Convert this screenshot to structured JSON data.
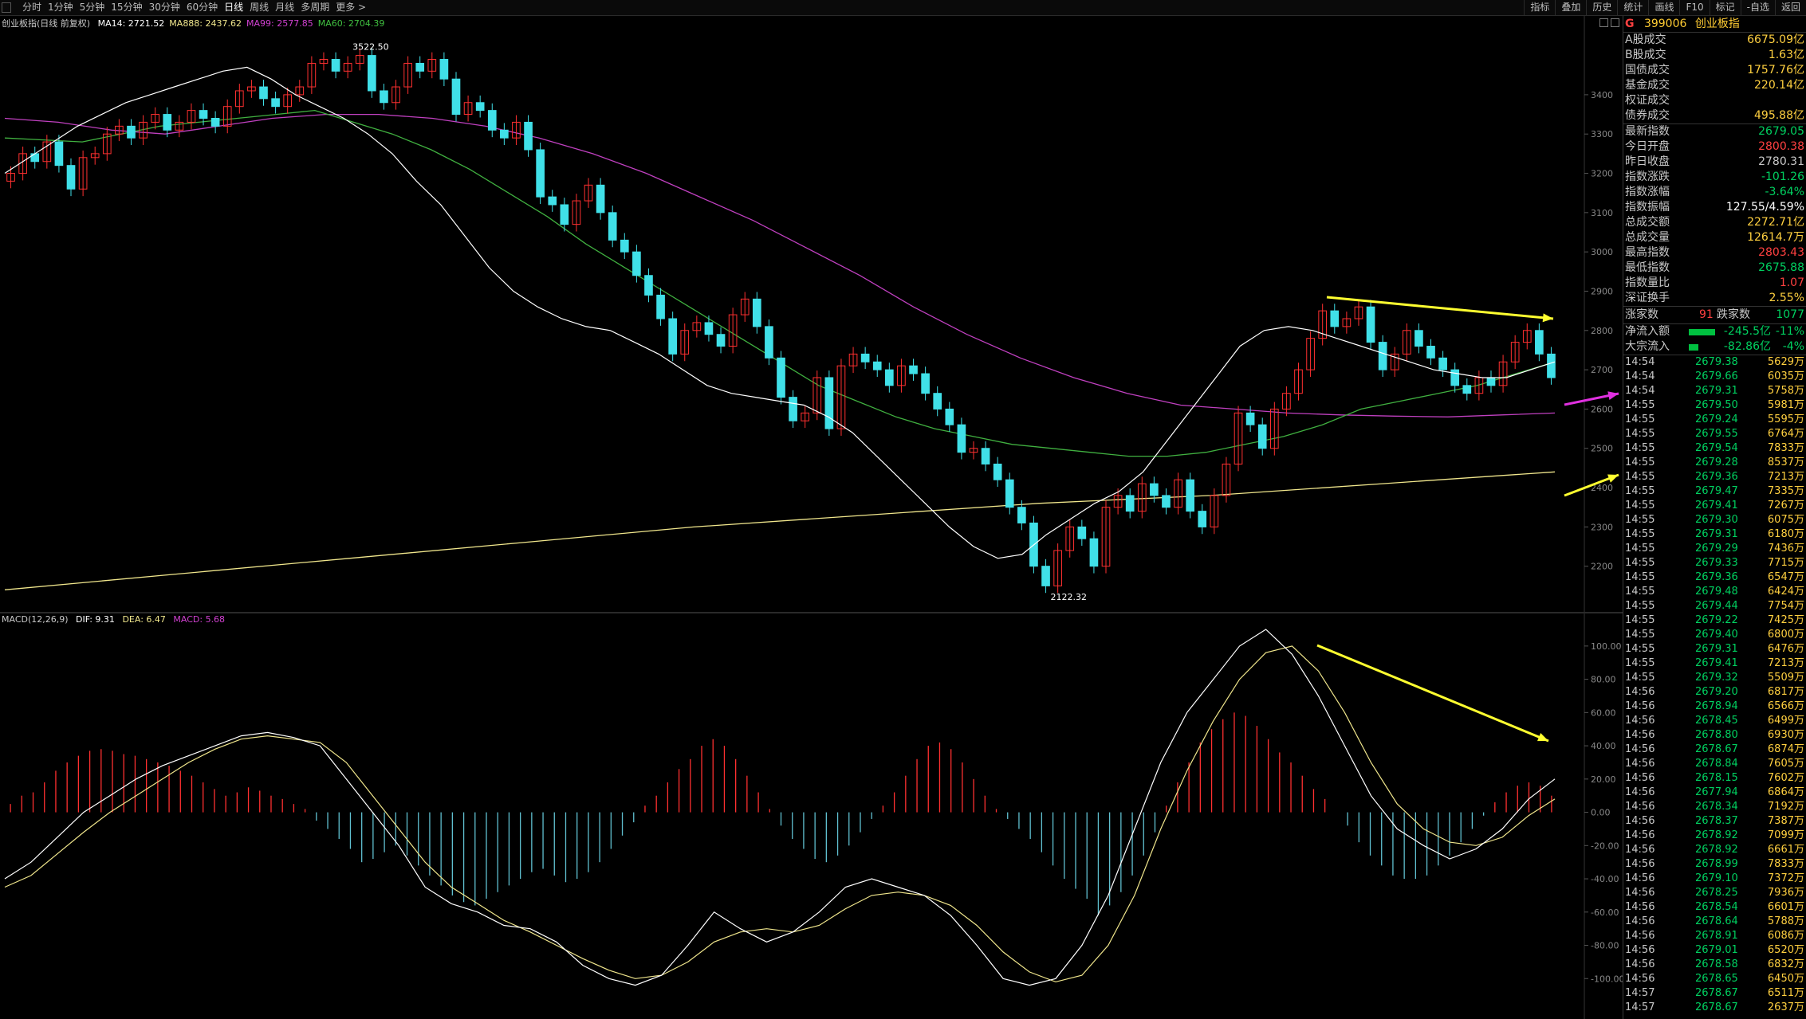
{
  "toolbar": {
    "periods": [
      "分时",
      "1分钟",
      "5分钟",
      "15分钟",
      "30分钟",
      "60分钟",
      "日线",
      "周线",
      "月线",
      "多周期",
      "更多 >"
    ],
    "active_period": "日线",
    "tools": [
      "指标",
      "叠加",
      "历史",
      "统计",
      "画线",
      "F10",
      "标记",
      "-自选",
      "返回"
    ]
  },
  "kline_panel": {
    "name": "创业板指(日线 前复权)",
    "ma": [
      {
        "label": "MA14: 2721.52",
        "color": "#ffffff"
      },
      {
        "label": "MA888: 2437.62",
        "color": "#f0e68c"
      },
      {
        "label": "MA99: 2577.85",
        "color": "#d040d0"
      },
      {
        "label": "MA60: 2704.39",
        "color": "#40c040"
      }
    ],
    "high_label": "3522.50",
    "low_label": "2122.32"
  },
  "macd_panel": {
    "name": "MACD(12,26,9)",
    "dif": "DIF: 9.31",
    "dea": "DEA: 6.47",
    "macd": "MACD: 5.68"
  },
  "chart_data": [
    {
      "type": "candlestick",
      "title": "创业板指(日线 前复权)",
      "ylim": [
        2100,
        3560
      ],
      "yticks": [
        2200,
        2300,
        2400,
        2500,
        2600,
        2700,
        2800,
        2900,
        3000,
        3100,
        3200,
        3300,
        3400
      ],
      "colors": {
        "up": "#ff3030",
        "down": "#40e0e8"
      },
      "candles": [
        [
          3180,
          3200
        ],
        [
          3200,
          3250
        ],
        [
          3250,
          3230
        ],
        [
          3230,
          3280
        ],
        [
          3280,
          3220
        ],
        [
          3220,
          3160
        ],
        [
          3160,
          3240
        ],
        [
          3240,
          3250
        ],
        [
          3250,
          3300
        ],
        [
          3300,
          3320
        ],
        [
          3320,
          3290
        ],
        [
          3290,
          3330
        ],
        [
          3330,
          3350
        ],
        [
          3350,
          3310
        ],
        [
          3310,
          3330
        ],
        [
          3330,
          3360
        ],
        [
          3360,
          3340
        ],
        [
          3340,
          3320
        ],
        [
          3320,
          3370
        ],
        [
          3370,
          3410
        ],
        [
          3410,
          3420
        ],
        [
          3420,
          3390
        ],
        [
          3390,
          3370
        ],
        [
          3370,
          3400
        ],
        [
          3400,
          3420
        ],
        [
          3420,
          3480
        ],
        [
          3480,
          3490
        ],
        [
          3490,
          3460
        ],
        [
          3460,
          3480
        ],
        [
          3480,
          3500
        ],
        [
          3500,
          3410
        ],
        [
          3410,
          3380
        ],
        [
          3380,
          3420
        ],
        [
          3420,
          3480
        ],
        [
          3480,
          3460
        ],
        [
          3460,
          3490
        ],
        [
          3490,
          3440
        ],
        [
          3440,
          3350
        ],
        [
          3350,
          3380
        ],
        [
          3380,
          3360
        ],
        [
          3360,
          3310
        ],
        [
          3310,
          3290
        ],
        [
          3290,
          3330
        ],
        [
          3330,
          3260
        ],
        [
          3260,
          3140
        ],
        [
          3140,
          3120
        ],
        [
          3120,
          3070
        ],
        [
          3070,
          3130
        ],
        [
          3130,
          3170
        ],
        [
          3170,
          3100
        ],
        [
          3100,
          3030
        ],
        [
          3030,
          3000
        ],
        [
          3000,
          2940
        ],
        [
          2940,
          2890
        ],
        [
          2890,
          2830
        ],
        [
          2830,
          2740
        ],
        [
          2740,
          2800
        ],
        [
          2800,
          2820
        ],
        [
          2820,
          2790
        ],
        [
          2790,
          2760
        ],
        [
          2760,
          2840
        ],
        [
          2840,
          2880
        ],
        [
          2880,
          2810
        ],
        [
          2810,
          2730
        ],
        [
          2730,
          2630
        ],
        [
          2630,
          2570
        ],
        [
          2570,
          2590
        ],
        [
          2590,
          2680
        ],
        [
          2680,
          2550
        ],
        [
          2550,
          2710
        ],
        [
          2710,
          2740
        ],
        [
          2740,
          2720
        ],
        [
          2720,
          2700
        ],
        [
          2700,
          2660
        ],
        [
          2660,
          2710
        ],
        [
          2710,
          2690
        ],
        [
          2690,
          2640
        ],
        [
          2640,
          2600
        ],
        [
          2600,
          2560
        ],
        [
          2560,
          2490
        ],
        [
          2490,
          2500
        ],
        [
          2500,
          2460
        ],
        [
          2460,
          2420
        ],
        [
          2420,
          2350
        ],
        [
          2350,
          2310
        ],
        [
          2310,
          2200
        ],
        [
          2200,
          2150
        ],
        [
          2150,
          2240
        ],
        [
          2240,
          2300
        ],
        [
          2300,
          2270
        ],
        [
          2270,
          2200
        ],
        [
          2200,
          2350
        ],
        [
          2350,
          2380
        ],
        [
          2380,
          2340
        ],
        [
          2340,
          2410
        ],
        [
          2410,
          2380
        ],
        [
          2380,
          2350
        ],
        [
          2350,
          2420
        ],
        [
          2420,
          2340
        ],
        [
          2340,
          2300
        ],
        [
          2300,
          2380
        ],
        [
          2380,
          2460
        ],
        [
          2460,
          2590
        ],
        [
          2590,
          2560
        ],
        [
          2560,
          2500
        ],
        [
          2500,
          2600
        ],
        [
          2600,
          2640
        ],
        [
          2640,
          2700
        ],
        [
          2700,
          2780
        ],
        [
          2780,
          2850
        ],
        [
          2850,
          2810
        ],
        [
          2810,
          2830
        ],
        [
          2830,
          2860
        ],
        [
          2860,
          2770
        ],
        [
          2770,
          2700
        ],
        [
          2700,
          2740
        ],
        [
          2740,
          2800
        ],
        [
          2800,
          2760
        ],
        [
          2760,
          2730
        ],
        [
          2730,
          2700
        ],
        [
          2700,
          2660
        ],
        [
          2660,
          2640
        ],
        [
          2640,
          2680
        ],
        [
          2680,
          2660
        ],
        [
          2660,
          2720
        ],
        [
          2720,
          2770
        ],
        [
          2770,
          2800
        ],
        [
          2800,
          2740
        ],
        [
          2740,
          2680
        ]
      ],
      "ma14": [
        3200,
        3240,
        3280,
        3320,
        3350,
        3380,
        3400,
        3420,
        3440,
        3460,
        3470,
        3440,
        3400,
        3370,
        3340,
        3300,
        3250,
        3180,
        3120,
        3040,
        2960,
        2900,
        2860,
        2830,
        2810,
        2800,
        2770,
        2740,
        2700,
        2660,
        2640,
        2630,
        2620,
        2610,
        2580,
        2540,
        2480,
        2420,
        2360,
        2300,
        2250,
        2220,
        2230,
        2280,
        2320,
        2360,
        2390,
        2440,
        2520,
        2600,
        2680,
        2760,
        2800,
        2810,
        2800,
        2780,
        2760,
        2740,
        2720,
        2700,
        2690,
        2680,
        2680,
        2700,
        2720
      ],
      "ma60": [
        3290,
        3285,
        3280,
        3300,
        3320,
        3330,
        3340,
        3350,
        3360,
        3330,
        3300,
        3260,
        3210,
        3150,
        3090,
        3020,
        2960,
        2900,
        2840,
        2780,
        2720,
        2660,
        2620,
        2580,
        2550,
        2530,
        2510,
        2500,
        2490,
        2480,
        2480,
        2490,
        2510,
        2530,
        2560,
        2600,
        2620,
        2640,
        2660,
        2690,
        2720
      ],
      "ma99": [
        3340,
        3330,
        3310,
        3300,
        3320,
        3340,
        3350,
        3350,
        3340,
        3320,
        3290,
        3250,
        3200,
        3140,
        3080,
        3010,
        2940,
        2860,
        2790,
        2730,
        2680,
        2640,
        2610,
        2600,
        2590,
        2585,
        2582,
        2580,
        2585,
        2590
      ],
      "ma888": [
        2140,
        2180,
        2220,
        2260,
        2300,
        2330,
        2360,
        2380,
        2410,
        2440
      ]
    },
    {
      "type": "macd",
      "ylim": [
        -120,
        110
      ],
      "yticks": [
        -100,
        -80,
        -60,
        -40,
        -20,
        0,
        20,
        40,
        60,
        80,
        100
      ],
      "colors": {
        "dif": "#ffffff",
        "dea": "#f0e68c",
        "pos": "#ff3030",
        "neg": "#60c0d0"
      },
      "hist": [
        5,
        10,
        12,
        18,
        25,
        30,
        34,
        37,
        38,
        37,
        35,
        34,
        32,
        30,
        28,
        25,
        22,
        18,
        14,
        10,
        12,
        15,
        13,
        10,
        8,
        5,
        2,
        -5,
        -10,
        -16,
        -22,
        -30,
        -28,
        -24,
        -20,
        -26,
        -32,
        -38,
        -44,
        -50,
        -54,
        -56,
        -52,
        -48,
        -44,
        -40,
        -36,
        -34,
        -38,
        -42,
        -40,
        -36,
        -30,
        -22,
        -14,
        -6,
        4,
        10,
        18,
        26,
        32,
        40,
        44,
        40,
        32,
        22,
        12,
        2,
        -8,
        -16,
        -22,
        -28,
        -30,
        -26,
        -20,
        -12,
        -4,
        4,
        12,
        22,
        32,
        40,
        42,
        38,
        30,
        20,
        10,
        2,
        -4,
        -10,
        -16,
        -24,
        -32,
        -40,
        -46,
        -52,
        -62,
        -56,
        -48,
        -38,
        -26,
        -12,
        4,
        18,
        30,
        42,
        50,
        56,
        60,
        58,
        52,
        44,
        36,
        30,
        22,
        14,
        8,
        0,
        -8,
        -18,
        -26,
        -32,
        -38,
        -40,
        -40,
        -38,
        -32,
        -26,
        -18,
        -10,
        -2,
        6,
        12,
        16,
        18,
        16,
        10
      ],
      "dif": [
        -40,
        -30,
        -15,
        0,
        10,
        20,
        28,
        34,
        40,
        46,
        48,
        45,
        40,
        20,
        0,
        -20,
        -45,
        -55,
        -60,
        -68,
        -70,
        -78,
        -92,
        -100,
        -104,
        -98,
        -80,
        -60,
        -70,
        -78,
        -72,
        -60,
        -45,
        -40,
        -45,
        -50,
        -62,
        -80,
        -100,
        -104,
        -100,
        -80,
        -50,
        -10,
        30,
        60,
        80,
        100,
        110,
        95,
        70,
        40,
        10,
        -10,
        -20,
        -28,
        -22,
        -10,
        8,
        20
      ],
      "dea": [
        -45,
        -38,
        -25,
        -12,
        0,
        10,
        20,
        30,
        38,
        44,
        46,
        44,
        42,
        30,
        10,
        -10,
        -30,
        -45,
        -55,
        -65,
        -72,
        -80,
        -88,
        -95,
        -100,
        -98,
        -90,
        -78,
        -72,
        -70,
        -72,
        -68,
        -58,
        -50,
        -48,
        -50,
        -56,
        -68,
        -84,
        -96,
        -102,
        -98,
        -80,
        -50,
        -10,
        25,
        55,
        80,
        96,
        100,
        85,
        60,
        30,
        5,
        -10,
        -18,
        -20,
        -15,
        -2,
        8
      ]
    }
  ],
  "right_panel": {
    "badge": "G",
    "code": "399006",
    "name": "创业板指",
    "turnover": [
      {
        "label": "A股成交",
        "value": "6675.09亿",
        "color": "#ffd040"
      },
      {
        "label": "B股成交",
        "value": "1.63亿",
        "color": "#ffd040"
      },
      {
        "label": "国债成交",
        "value": "1757.76亿",
        "color": "#ffd040"
      },
      {
        "label": "基金成交",
        "value": "220.14亿",
        "color": "#ffd040"
      },
      {
        "label": "权证成交",
        "value": "",
        "color": "#ffd040"
      },
      {
        "label": "债券成交",
        "value": "495.88亿",
        "color": "#ffd040"
      }
    ],
    "stats": [
      {
        "label": "最新指数",
        "value": "2679.05",
        "color": "#00d060"
      },
      {
        "label": "今日开盘",
        "value": "2800.38",
        "color": "#ff4040"
      },
      {
        "label": "昨日收盘",
        "value": "2780.31",
        "color": "#c8c8c8"
      },
      {
        "label": "指数涨跌",
        "value": "-101.26",
        "color": "#00d060"
      },
      {
        "label": "指数涨幅",
        "value": "-3.64%",
        "color": "#00d060"
      },
      {
        "label": "指数振幅",
        "value": "127.55/4.59%",
        "color": "#ffffff"
      },
      {
        "label": "总成交额",
        "value": "2272.71亿",
        "color": "#ffd040"
      },
      {
        "label": "总成交量",
        "value": "12614.7万",
        "color": "#ffd040"
      },
      {
        "label": "最高指数",
        "value": "2803.43",
        "color": "#ff4040"
      },
      {
        "label": "最低指数",
        "value": "2675.88",
        "color": "#00d060"
      },
      {
        "label": "指数量比",
        "value": "1.07",
        "color": "#ff4040"
      },
      {
        "label": "深证换手",
        "value": "2.55%",
        "color": "#ffd040"
      }
    ],
    "updown": {
      "up_label": "涨家数",
      "up_value": "91",
      "down_label": "跌家数",
      "down_value": "1077"
    },
    "flows": [
      {
        "label": "净流入额",
        "value": "-245.5亿",
        "pct": "-11%",
        "bar": 0.55
      },
      {
        "label": "大宗流入",
        "value": "-82.86亿",
        "pct": "-4%",
        "bar": 0.2
      }
    ],
    "ticks": [
      {
        "t": "14:54",
        "p": "2679.38",
        "v": "5629万"
      },
      {
        "t": "14:54",
        "p": "2679.66",
        "v": "6035万"
      },
      {
        "t": "14:54",
        "p": "2679.31",
        "v": "5758万"
      },
      {
        "t": "14:55",
        "p": "2679.50",
        "v": "5981万"
      },
      {
        "t": "14:55",
        "p": "2679.24",
        "v": "5595万"
      },
      {
        "t": "14:55",
        "p": "2679.55",
        "v": "6764万"
      },
      {
        "t": "14:55",
        "p": "2679.54",
        "v": "7833万"
      },
      {
        "t": "14:55",
        "p": "2679.28",
        "v": "8537万"
      },
      {
        "t": "14:55",
        "p": "2679.36",
        "v": "7213万"
      },
      {
        "t": "14:55",
        "p": "2679.47",
        "v": "7335万"
      },
      {
        "t": "14:55",
        "p": "2679.41",
        "v": "7267万"
      },
      {
        "t": "14:55",
        "p": "2679.30",
        "v": "6075万"
      },
      {
        "t": "14:55",
        "p": "2679.31",
        "v": "6180万"
      },
      {
        "t": "14:55",
        "p": "2679.29",
        "v": "7436万"
      },
      {
        "t": "14:55",
        "p": "2679.33",
        "v": "7715万"
      },
      {
        "t": "14:55",
        "p": "2679.36",
        "v": "6547万"
      },
      {
        "t": "14:55",
        "p": "2679.48",
        "v": "6424万"
      },
      {
        "t": "14:55",
        "p": "2679.44",
        "v": "7754万"
      },
      {
        "t": "14:55",
        "p": "2679.22",
        "v": "7425万"
      },
      {
        "t": "14:55",
        "p": "2679.40",
        "v": "6800万"
      },
      {
        "t": "14:55",
        "p": "2679.31",
        "v": "6476万"
      },
      {
        "t": "14:55",
        "p": "2679.41",
        "v": "7213万"
      },
      {
        "t": "14:55",
        "p": "2679.32",
        "v": "5509万"
      },
      {
        "t": "14:56",
        "p": "2679.20",
        "v": "6817万"
      },
      {
        "t": "14:56",
        "p": "2678.94",
        "v": "6566万"
      },
      {
        "t": "14:56",
        "p": "2678.45",
        "v": "6499万"
      },
      {
        "t": "14:56",
        "p": "2678.80",
        "v": "6930万"
      },
      {
        "t": "14:56",
        "p": "2678.67",
        "v": "6874万"
      },
      {
        "t": "14:56",
        "p": "2678.84",
        "v": "7605万"
      },
      {
        "t": "14:56",
        "p": "2678.15",
        "v": "7602万"
      },
      {
        "t": "14:56",
        "p": "2677.94",
        "v": "6864万"
      },
      {
        "t": "14:56",
        "p": "2678.34",
        "v": "7192万"
      },
      {
        "t": "14:56",
        "p": "2678.37",
        "v": "7387万"
      },
      {
        "t": "14:56",
        "p": "2678.92",
        "v": "7099万"
      },
      {
        "t": "14:56",
        "p": "2678.92",
        "v": "6661万"
      },
      {
        "t": "14:56",
        "p": "2678.99",
        "v": "7833万"
      },
      {
        "t": "14:56",
        "p": "2679.10",
        "v": "7372万"
      },
      {
        "t": "14:56",
        "p": "2678.25",
        "v": "7936万"
      },
      {
        "t": "14:56",
        "p": "2678.54",
        "v": "6601万"
      },
      {
        "t": "14:56",
        "p": "2678.64",
        "v": "5788万"
      },
      {
        "t": "14:56",
        "p": "2678.91",
        "v": "6086万"
      },
      {
        "t": "14:56",
        "p": "2679.01",
        "v": "6520万"
      },
      {
        "t": "14:56",
        "p": "2678.58",
        "v": "6832万"
      },
      {
        "t": "14:56",
        "p": "2678.65",
        "v": "6450万"
      },
      {
        "t": "14:57",
        "p": "2678.67",
        "v": "6511万"
      },
      {
        "t": "14:57",
        "p": "2678.67",
        "v": "2637万"
      }
    ]
  }
}
